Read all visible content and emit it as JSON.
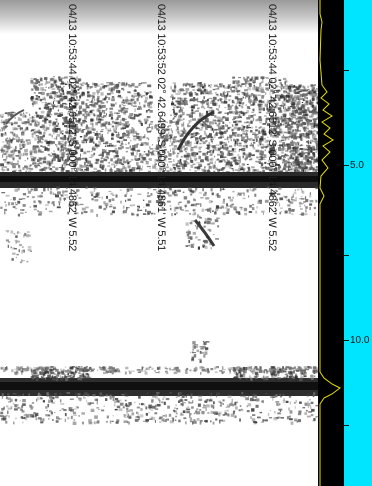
{
  "echogram": {
    "markers": [
      {
        "label": "04/13 10:53:44 02° 42.6512' S 000° 14.4862' W 5.52"
      },
      {
        "label": "04/13 10:53:52 02° 42.6499' S 000° 14.4861' W 5.51"
      },
      {
        "label": "04/13 10:53:44 02° 42.6512' S 000° 14.4862' W 5.52"
      }
    ]
  },
  "depth_scale": {
    "labels": [
      "5.0",
      "10.0"
    ]
  },
  "colors": {
    "profile_background": "#000000",
    "profile_trace": "#e8e000",
    "scale_background": "#00e5ff",
    "echo_dark": "#141414"
  }
}
